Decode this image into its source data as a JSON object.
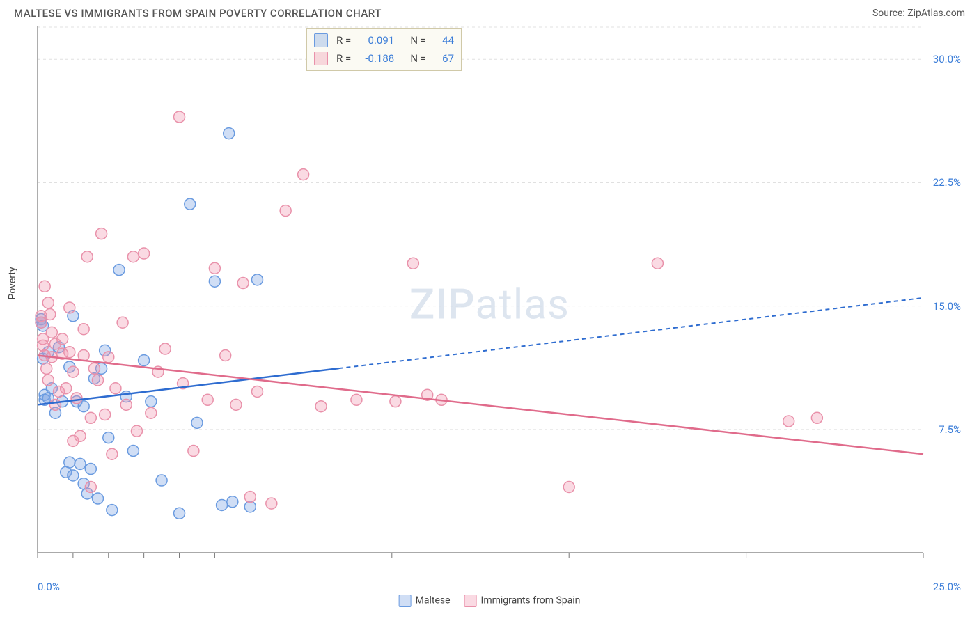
{
  "title": "MALTESE VS IMMIGRANTS FROM SPAIN POVERTY CORRELATION CHART",
  "source": "Source: ZipAtlas.com",
  "watermark": "ZIPatlas",
  "y_axis_label": "Poverty",
  "chart": {
    "type": "scatter",
    "xlim": [
      0,
      25
    ],
    "ylim": [
      0,
      32
    ],
    "y_ticks": [
      7.5,
      15.0,
      22.5,
      30.0
    ],
    "y_tick_labels": [
      "7.5%",
      "15.0%",
      "22.5%",
      "30.0%"
    ],
    "x_tick_left": "0.0%",
    "x_tick_right": "25.0%",
    "x_ticks_minor": [
      0,
      1,
      2,
      3,
      4,
      5,
      10,
      15,
      20,
      25
    ],
    "grid_color": "#e0e0e0",
    "axis_color": "#777777",
    "background_color": "#ffffff",
    "marker_radius": 8,
    "marker_stroke_width": 1.5,
    "series": [
      {
        "name": "Maltese",
        "fill": "rgba(120,160,225,0.35)",
        "stroke": "#6a9be0",
        "regression": {
          "x1": 0,
          "y1": 9.0,
          "x2": 25,
          "y2": 15.5,
          "solid_until_x": 8.5
        },
        "reg_color": "#2e6cd0",
        "points": [
          [
            0.1,
            14.2
          ],
          [
            0.1,
            14.0
          ],
          [
            0.15,
            13.8
          ],
          [
            0.15,
            11.8
          ],
          [
            0.2,
            9.6
          ],
          [
            0.2,
            9.3
          ],
          [
            0.3,
            12.2
          ],
          [
            0.3,
            9.4
          ],
          [
            0.4,
            10.0
          ],
          [
            0.5,
            8.5
          ],
          [
            0.6,
            12.5
          ],
          [
            0.7,
            9.2
          ],
          [
            0.8,
            4.9
          ],
          [
            0.9,
            11.3
          ],
          [
            0.9,
            5.5
          ],
          [
            1.0,
            14.4
          ],
          [
            1.0,
            4.7
          ],
          [
            1.1,
            9.2
          ],
          [
            1.2,
            5.4
          ],
          [
            1.3,
            8.9
          ],
          [
            1.3,
            4.2
          ],
          [
            1.4,
            3.6
          ],
          [
            1.5,
            5.1
          ],
          [
            1.6,
            10.6
          ],
          [
            1.7,
            3.3
          ],
          [
            1.8,
            11.2
          ],
          [
            1.9,
            12.3
          ],
          [
            2.0,
            7.0
          ],
          [
            2.1,
            2.6
          ],
          [
            2.3,
            17.2
          ],
          [
            2.5,
            9.5
          ],
          [
            2.7,
            6.2
          ],
          [
            3.0,
            11.7
          ],
          [
            3.2,
            9.2
          ],
          [
            3.5,
            4.4
          ],
          [
            4.0,
            2.4
          ],
          [
            4.3,
            21.2
          ],
          [
            4.5,
            7.9
          ],
          [
            5.0,
            16.5
          ],
          [
            5.2,
            2.9
          ],
          [
            5.4,
            25.5
          ],
          [
            5.5,
            3.1
          ],
          [
            6.0,
            2.8
          ],
          [
            6.2,
            16.6
          ]
        ]
      },
      {
        "name": "Immigrants from Spain",
        "fill": "rgba(240,150,175,0.35)",
        "stroke": "#e991aa",
        "regression": {
          "x1": 0,
          "y1": 12.0,
          "x2": 25,
          "y2": 6.0,
          "solid_until_x": 25
        },
        "reg_color": "#e06b8b",
        "points": [
          [
            0.1,
            14.4
          ],
          [
            0.1,
            14.0
          ],
          [
            0.15,
            13.0
          ],
          [
            0.15,
            12.6
          ],
          [
            0.2,
            12.0
          ],
          [
            0.2,
            16.2
          ],
          [
            0.25,
            11.2
          ],
          [
            0.3,
            10.5
          ],
          [
            0.3,
            15.2
          ],
          [
            0.35,
            14.5
          ],
          [
            0.4,
            11.9
          ],
          [
            0.4,
            13.4
          ],
          [
            0.5,
            12.7
          ],
          [
            0.5,
            9.0
          ],
          [
            0.6,
            9.8
          ],
          [
            0.7,
            13.0
          ],
          [
            0.7,
            12.1
          ],
          [
            0.8,
            10.0
          ],
          [
            0.9,
            14.9
          ],
          [
            0.9,
            12.2
          ],
          [
            1.0,
            11.0
          ],
          [
            1.0,
            6.8
          ],
          [
            1.1,
            9.4
          ],
          [
            1.2,
            7.1
          ],
          [
            1.3,
            12.0
          ],
          [
            1.3,
            13.6
          ],
          [
            1.4,
            18.0
          ],
          [
            1.5,
            8.2
          ],
          [
            1.5,
            4.0
          ],
          [
            1.6,
            11.2
          ],
          [
            1.7,
            10.5
          ],
          [
            1.8,
            19.4
          ],
          [
            1.9,
            8.4
          ],
          [
            2.0,
            11.9
          ],
          [
            2.1,
            6.0
          ],
          [
            2.2,
            10.0
          ],
          [
            2.4,
            14.0
          ],
          [
            2.5,
            9.0
          ],
          [
            2.7,
            18.0
          ],
          [
            2.8,
            7.4
          ],
          [
            3.0,
            18.2
          ],
          [
            3.2,
            8.5
          ],
          [
            3.4,
            11.0
          ],
          [
            3.6,
            12.4
          ],
          [
            4.0,
            26.5
          ],
          [
            4.1,
            10.3
          ],
          [
            4.4,
            6.2
          ],
          [
            4.8,
            9.3
          ],
          [
            5.0,
            17.3
          ],
          [
            5.3,
            12.0
          ],
          [
            5.6,
            9.0
          ],
          [
            5.8,
            16.4
          ],
          [
            6.0,
            3.4
          ],
          [
            6.2,
            9.8
          ],
          [
            6.6,
            3.0
          ],
          [
            7.0,
            20.8
          ],
          [
            7.5,
            23.0
          ],
          [
            8.0,
            8.9
          ],
          [
            9.0,
            9.3
          ],
          [
            10.1,
            9.2
          ],
          [
            10.6,
            17.6
          ],
          [
            11.0,
            9.6
          ],
          [
            11.4,
            9.3
          ],
          [
            15.0,
            4.0
          ],
          [
            17.5,
            17.6
          ],
          [
            21.2,
            8.0
          ],
          [
            22.0,
            8.2
          ]
        ]
      }
    ],
    "correlation_box": {
      "rows": [
        {
          "swatch_fill": "rgba(120,160,225,0.35)",
          "swatch_stroke": "#6a9be0",
          "r_label": "R =",
          "r": "0.091",
          "n_label": "N =",
          "n": "44"
        },
        {
          "swatch_fill": "rgba(240,150,175,0.35)",
          "swatch_stroke": "#e991aa",
          "r_label": "R =",
          "r": "-0.188",
          "n_label": "N =",
          "n": "67"
        }
      ]
    },
    "legend_bottom": [
      {
        "swatch_fill": "rgba(120,160,225,0.35)",
        "swatch_stroke": "#6a9be0",
        "label": "Maltese"
      },
      {
        "swatch_fill": "rgba(240,150,175,0.35)",
        "swatch_stroke": "#e991aa",
        "label": "Immigrants from Spain"
      }
    ]
  }
}
